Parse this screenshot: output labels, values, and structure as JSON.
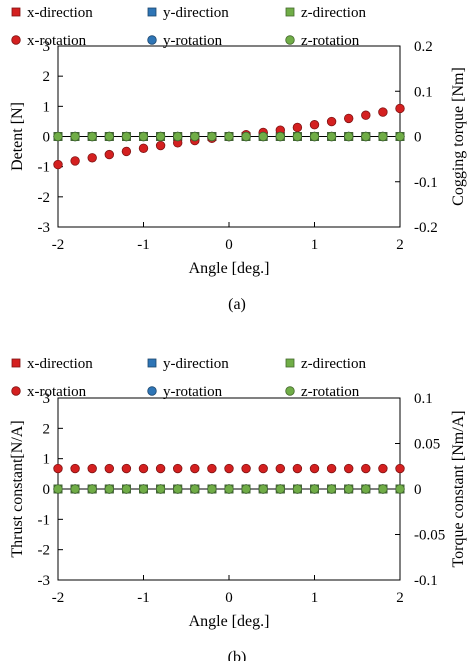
{
  "chart_data": [
    {
      "type": "scatter",
      "caption": "(a)",
      "xlabel": "Angle [deg.]",
      "ylabel": "Detent [N]",
      "y2label": "Cogging torque [Nm]",
      "xlim": [
        -2,
        2
      ],
      "ylim": [
        -3,
        3
      ],
      "y2lim": [
        -0.2,
        0.2
      ],
      "xticks": [
        -2,
        -1,
        0,
        1,
        2
      ],
      "yticks": [
        -3,
        -2,
        -1,
        0,
        1,
        2,
        3
      ],
      "y2ticks": [
        -0.2,
        -0.1,
        0,
        0.1,
        0.2
      ],
      "xtick_labels": [
        "-2",
        "-1",
        "0",
        "1",
        "2"
      ],
      "ytick_labels": [
        "-3",
        "-2",
        "-1",
        "0",
        "1",
        "2",
        "3"
      ],
      "y2tick_labels": [
        "-0.2",
        "-0.1",
        "0",
        "0.1",
        "0.2"
      ],
      "grid": false,
      "legend_position": "top",
      "x": [
        -2.0,
        -1.8,
        -1.6,
        -1.4,
        -1.2,
        -1.0,
        -0.8,
        -0.6,
        -0.4,
        -0.2,
        0.0,
        0.2,
        0.4,
        0.6,
        0.8,
        1.0,
        1.2,
        1.4,
        1.6,
        1.8,
        2.0
      ],
      "series": [
        {
          "name": "x-direction",
          "axis": "left",
          "marker": "square",
          "color": "#d42020",
          "values": [
            0,
            0,
            0,
            0,
            0,
            0,
            0,
            0,
            0,
            0,
            0,
            0,
            0,
            0,
            0,
            0,
            0,
            0,
            0,
            0,
            0
          ]
        },
        {
          "name": "y-direction",
          "axis": "left",
          "marker": "square",
          "color": "#2e75b6",
          "values": [
            0,
            0,
            0,
            0,
            0,
            0,
            0,
            0,
            0,
            0,
            0,
            0,
            0,
            0,
            0,
            0,
            0,
            0,
            0,
            0,
            0
          ]
        },
        {
          "name": "z-direction",
          "axis": "left",
          "marker": "square",
          "color": "#70ad47",
          "values": [
            0,
            0,
            0,
            0,
            0,
            0,
            0,
            0,
            0,
            0,
            0,
            0,
            0,
            0,
            0,
            0,
            0,
            0,
            0,
            0,
            0
          ]
        },
        {
          "name": "x-rotation",
          "axis": "right",
          "marker": "circle",
          "color": "#d42020",
          "values": [
            -0.062,
            -0.054,
            -0.047,
            -0.04,
            -0.033,
            -0.026,
            -0.02,
            -0.014,
            -0.009,
            -0.004,
            0.0,
            0.004,
            0.009,
            0.014,
            0.02,
            0.026,
            0.033,
            0.04,
            0.047,
            0.054,
            0.062
          ]
        },
        {
          "name": "y-rotation",
          "axis": "right",
          "marker": "circle",
          "color": "#2e75b6",
          "values": [
            0,
            0,
            0,
            0,
            0,
            0,
            0,
            0,
            0,
            0,
            0,
            0,
            0,
            0,
            0,
            0,
            0,
            0,
            0,
            0,
            0
          ]
        },
        {
          "name": "z-rotation",
          "axis": "right",
          "marker": "circle",
          "color": "#70ad47",
          "values": [
            0,
            0,
            0,
            0,
            0,
            0,
            0,
            0,
            0,
            0,
            0,
            0,
            0,
            0,
            0,
            0,
            0,
            0,
            0,
            0,
            0
          ]
        }
      ]
    },
    {
      "type": "scatter",
      "caption": "(b)",
      "xlabel": "Angle [deg.]",
      "ylabel": "Thrust constant[N/A]",
      "y2label": "Torque constant [Nm/A]",
      "xlim": [
        -2,
        2
      ],
      "ylim": [
        -3,
        3
      ],
      "y2lim": [
        -0.1,
        0.1
      ],
      "xticks": [
        -2,
        -1,
        0,
        1,
        2
      ],
      "yticks": [
        -3,
        -2,
        -1,
        0,
        1,
        2,
        3
      ],
      "y2ticks": [
        -0.1,
        -0.05,
        0,
        0.05,
        0.1
      ],
      "xtick_labels": [
        "-2",
        "-1",
        "0",
        "1",
        "2"
      ],
      "ytick_labels": [
        "-3",
        "-2",
        "-1",
        "0",
        "1",
        "2",
        "3"
      ],
      "y2tick_labels": [
        "-0.1",
        "-0.05",
        "0",
        "0.05",
        "0.1"
      ],
      "grid": false,
      "legend_position": "top",
      "x": [
        -2.0,
        -1.8,
        -1.6,
        -1.4,
        -1.2,
        -1.0,
        -0.8,
        -0.6,
        -0.4,
        -0.2,
        0.0,
        0.2,
        0.4,
        0.6,
        0.8,
        1.0,
        1.2,
        1.4,
        1.6,
        1.8,
        2.0
      ],
      "series": [
        {
          "name": "x-direction",
          "axis": "left",
          "marker": "square",
          "color": "#d42020",
          "values": [
            0,
            0,
            0,
            0,
            0,
            0,
            0,
            0,
            0,
            0,
            0,
            0,
            0,
            0,
            0,
            0,
            0,
            0,
            0,
            0,
            0
          ]
        },
        {
          "name": "y-direction",
          "axis": "left",
          "marker": "square",
          "color": "#2e75b6",
          "values": [
            0,
            0,
            0,
            0,
            0,
            0,
            0,
            0,
            0,
            0,
            0,
            0,
            0,
            0,
            0,
            0,
            0,
            0,
            0,
            0,
            0
          ]
        },
        {
          "name": "z-direction",
          "axis": "left",
          "marker": "square",
          "color": "#70ad47",
          "values": [
            0,
            0,
            0,
            0,
            0,
            0,
            0,
            0,
            0,
            0,
            0,
            0,
            0,
            0,
            0,
            0,
            0,
            0,
            0,
            0,
            0
          ]
        },
        {
          "name": "x-rotation",
          "axis": "right",
          "marker": "circle",
          "color": "#d42020",
          "values": [
            0.0225,
            0.0225,
            0.0225,
            0.0225,
            0.0225,
            0.0225,
            0.0225,
            0.0225,
            0.0225,
            0.0225,
            0.0225,
            0.0225,
            0.0225,
            0.0225,
            0.0225,
            0.0225,
            0.0225,
            0.0225,
            0.0225,
            0.0225,
            0.0225
          ]
        },
        {
          "name": "y-rotation",
          "axis": "right",
          "marker": "circle",
          "color": "#2e75b6",
          "values": [
            0,
            0,
            0,
            0,
            0,
            0,
            0,
            0,
            0,
            0,
            0,
            0,
            0,
            0,
            0,
            0,
            0,
            0,
            0,
            0,
            0
          ]
        },
        {
          "name": "z-rotation",
          "axis": "right",
          "marker": "circle",
          "color": "#70ad47",
          "values": [
            0,
            0,
            0,
            0,
            0,
            0,
            0,
            0,
            0,
            0,
            0,
            0,
            0,
            0,
            0,
            0,
            0,
            0,
            0,
            0,
            0
          ]
        }
      ]
    }
  ]
}
